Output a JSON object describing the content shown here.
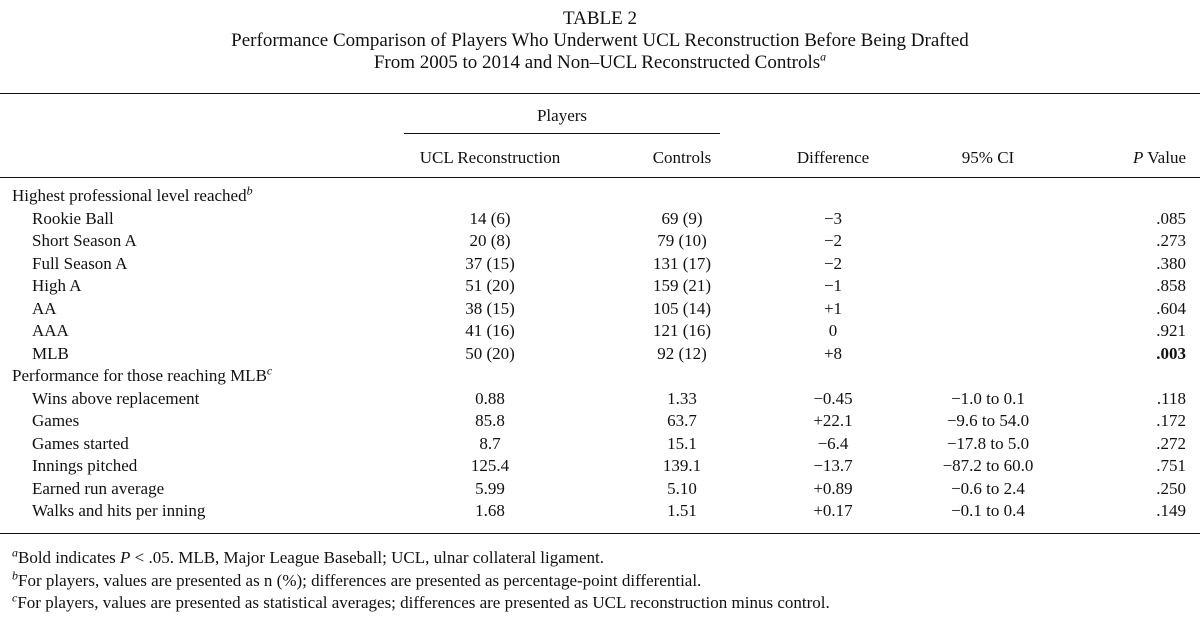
{
  "table": {
    "number": "TABLE 2",
    "title_line1": "Performance Comparison of Players Who Underwent UCL Reconstruction Before Being Drafted",
    "title_line2": "From 2005 to 2014 and Non–UCL Reconstructed Controls",
    "title_mark": "a",
    "headers": {
      "group": "Players",
      "col1": "UCL Reconstruction",
      "col2": "Controls",
      "col3": "Difference",
      "col4": "95% CI",
      "col5_italic": "P",
      "col5_rest": " Value"
    },
    "sections": [
      {
        "label": "Highest professional level reached",
        "mark": "b",
        "rows": [
          {
            "label": "Rookie Ball",
            "ucl": "14 (6)",
            "controls": "69 (9)",
            "difference": "−3",
            "ci": "",
            "p": ".085",
            "bold_p": false
          },
          {
            "label": "Short Season A",
            "ucl": "20 (8)",
            "controls": "79 (10)",
            "difference": "−2",
            "ci": "",
            "p": ".273",
            "bold_p": false
          },
          {
            "label": "Full Season A",
            "ucl": "37 (15)",
            "controls": "131 (17)",
            "difference": "−2",
            "ci": "",
            "p": ".380",
            "bold_p": false
          },
          {
            "label": "High A",
            "ucl": "51 (20)",
            "controls": "159 (21)",
            "difference": "−1",
            "ci": "",
            "p": ".858",
            "bold_p": false
          },
          {
            "label": "AA",
            "ucl": "38 (15)",
            "controls": "105 (14)",
            "difference": "+1",
            "ci": "",
            "p": ".604",
            "bold_p": false
          },
          {
            "label": "AAA",
            "ucl": "41 (16)",
            "controls": "121 (16)",
            "difference": "0",
            "ci": "",
            "p": ".921",
            "bold_p": false
          },
          {
            "label": "MLB",
            "ucl": "50 (20)",
            "controls": "92 (12)",
            "difference": "+8",
            "ci": "",
            "p": ".003",
            "bold_p": true
          }
        ]
      },
      {
        "label": "Performance for those reaching MLB",
        "mark": "c",
        "rows": [
          {
            "label": "Wins above replacement",
            "ucl": "0.88",
            "controls": "1.33",
            "difference": "−0.45",
            "ci": "−1.0 to 0.1",
            "p": ".118",
            "bold_p": false
          },
          {
            "label": "Games",
            "ucl": "85.8",
            "controls": "63.7",
            "difference": "+22.1",
            "ci": "−9.6 to 54.0",
            "p": ".172",
            "bold_p": false
          },
          {
            "label": "Games started",
            "ucl": "8.7",
            "controls": "15.1",
            "difference": "−6.4",
            "ci": "−17.8 to 5.0",
            "p": ".272",
            "bold_p": false
          },
          {
            "label": "Innings pitched",
            "ucl": "125.4",
            "controls": "139.1",
            "difference": "−13.7",
            "ci": "−87.2 to 60.0",
            "p": ".751",
            "bold_p": false
          },
          {
            "label": "Earned run average",
            "ucl": "5.99",
            "controls": "5.10",
            "difference": "+0.89",
            "ci": "−0.6 to 2.4",
            "p": ".250",
            "bold_p": false
          },
          {
            "label": "Walks and hits per inning",
            "ucl": "1.68",
            "controls": "1.51",
            "difference": "+0.17",
            "ci": "−0.1 to 0.4",
            "p": ".149",
            "bold_p": false
          }
        ]
      }
    ],
    "footnotes": [
      {
        "mark": "a",
        "parts": [
          {
            "t": "Bold indicates ",
            "i": false
          },
          {
            "t": "P",
            "i": true
          },
          {
            "t": " < .05. MLB, Major League Baseball; UCL, ulnar collateral ligament.",
            "i": false
          }
        ]
      },
      {
        "mark": "b",
        "parts": [
          {
            "t": "For players, values are presented as n (%); differences are presented as percentage-point differential.",
            "i": false
          }
        ]
      },
      {
        "mark": "c",
        "parts": [
          {
            "t": "For players, values are presented as statistical averages; differences are presented as UCL reconstruction minus control.",
            "i": false
          }
        ]
      }
    ]
  }
}
